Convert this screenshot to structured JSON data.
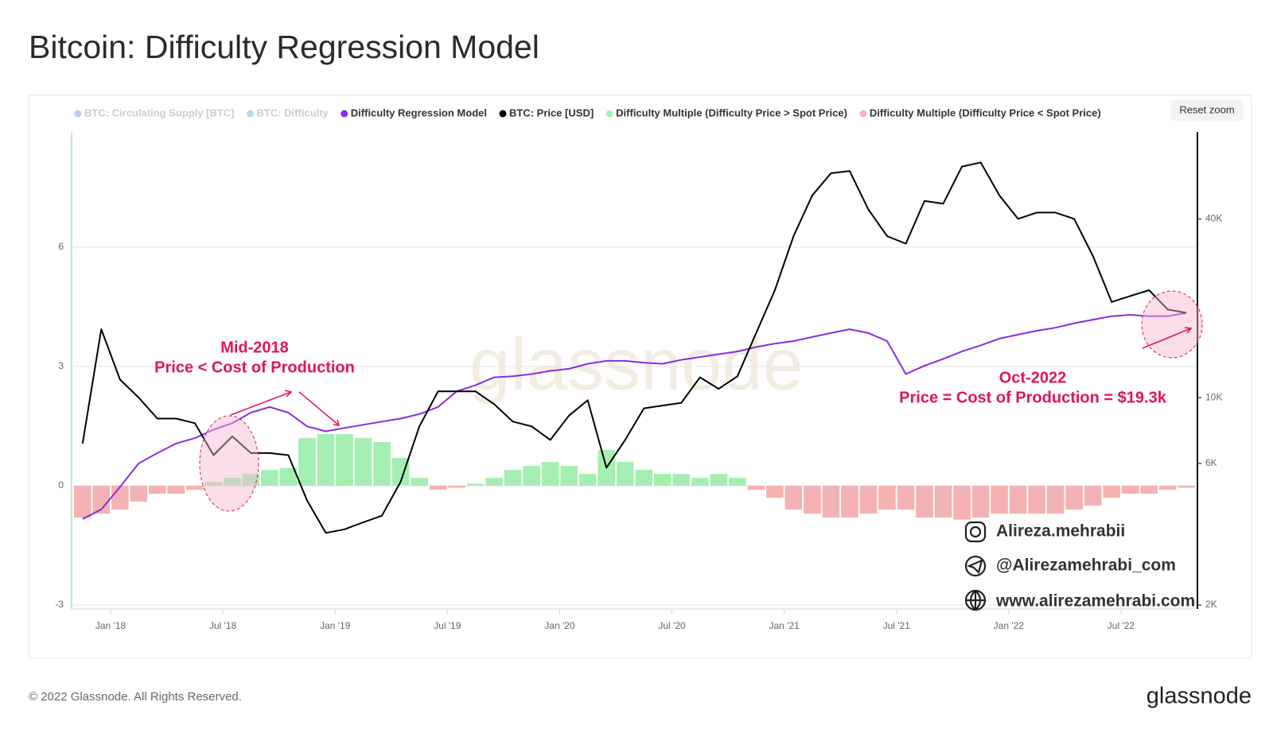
{
  "chart_data": {
    "type": "line",
    "title": "Bitcoin: Difficulty Regression Model",
    "reset_button": "Reset zoom",
    "footer": "© 2022 Glassnode. All Rights Reserved.",
    "logo": "glassnode",
    "watermark": "glassnode",
    "contacts": [
      "Alireza.mehrabii",
      "@Alirezamehrabi_com",
      "www.alirezamehrabi.com"
    ],
    "annotations": [
      {
        "title": "Mid-2018",
        "text": "Price < Cost of Production"
      },
      {
        "title": "Oct-2022",
        "text": "Price = Cost of Production  =  $19.3k"
      }
    ],
    "legend_hidden": [
      {
        "name": "BTC: Circulating Supply [BTC]",
        "color": "#3b6fd1"
      },
      {
        "name": "BTC: Difficulty",
        "color": "#2f8fd0"
      }
    ],
    "x": [
      "2017-11",
      "2017-12",
      "2018-01",
      "2018-02",
      "2018-03",
      "2018-04",
      "2018-05",
      "2018-06",
      "2018-07",
      "2018-08",
      "2018-09",
      "2018-10",
      "2018-11",
      "2018-12",
      "2019-01",
      "2019-02",
      "2019-03",
      "2019-04",
      "2019-05",
      "2019-06",
      "2019-07",
      "2019-08",
      "2019-09",
      "2019-10",
      "2019-11",
      "2019-12",
      "2020-01",
      "2020-02",
      "2020-03",
      "2020-04",
      "2020-05",
      "2020-06",
      "2020-07",
      "2020-08",
      "2020-09",
      "2020-10",
      "2020-11",
      "2020-12",
      "2021-01",
      "2021-02",
      "2021-03",
      "2021-04",
      "2021-05",
      "2021-06",
      "2021-07",
      "2021-08",
      "2021-09",
      "2021-10",
      "2021-11",
      "2021-12",
      "2022-01",
      "2022-02",
      "2022-03",
      "2022-04",
      "2022-05",
      "2022-06",
      "2022-07",
      "2022-08",
      "2022-09",
      "2022-10"
    ],
    "xlim": [
      "2017-11",
      "2022-11"
    ],
    "xticks": [
      {
        "value": "2018-01",
        "label": "Jan '18"
      },
      {
        "value": "2018-07",
        "label": "Jul '18"
      },
      {
        "value": "2019-01",
        "label": "Jan '19"
      },
      {
        "value": "2019-07",
        "label": "Jul '19"
      },
      {
        "value": "2020-01",
        "label": "Jan '20"
      },
      {
        "value": "2020-07",
        "label": "Jul '20"
      },
      {
        "value": "2021-01",
        "label": "Jan '21"
      },
      {
        "value": "2021-07",
        "label": "Jul '21"
      },
      {
        "value": "2022-01",
        "label": "Jan '22"
      },
      {
        "value": "2022-07",
        "label": "Jul '22"
      }
    ],
    "ylim": [
      -3.1,
      8.9
    ],
    "yticks": [
      -3,
      0,
      3,
      6
    ],
    "y2lim": [
      1940,
      78500
    ],
    "y2log": true,
    "y2ticks": [
      {
        "value": 2000,
        "label": "2K"
      },
      {
        "value": 6000,
        "label": "6K"
      },
      {
        "value": 10000,
        "label": "10K"
      },
      {
        "value": 40000,
        "label": "40K"
      }
    ],
    "grid": true,
    "series": [
      {
        "name": "Difficulty Regression Model",
        "type": "line",
        "axis": "y2",
        "color": "#8b2be2",
        "values": [
          3900,
          4200,
          5000,
          6000,
          6500,
          7000,
          7300,
          7800,
          8200,
          8900,
          9300,
          8900,
          8000,
          7700,
          7900,
          8100,
          8300,
          8500,
          8800,
          9300,
          10500,
          11000,
          11700,
          11800,
          12000,
          12300,
          12500,
          13000,
          13300,
          13300,
          13100,
          13000,
          13400,
          13700,
          14000,
          14300,
          14800,
          15200,
          15500,
          16000,
          16500,
          17000,
          16500,
          15500,
          12000,
          12800,
          13500,
          14300,
          15000,
          15800,
          16300,
          16800,
          17200,
          17800,
          18300,
          18800,
          19000,
          18800,
          18800,
          19300
        ]
      },
      {
        "name": "BTC: Price [USD]",
        "type": "line",
        "axis": "y2",
        "color": "#000000",
        "values": [
          7000,
          17000,
          11500,
          10000,
          8500,
          8500,
          8200,
          6400,
          7400,
          6500,
          6500,
          6400,
          4500,
          3500,
          3600,
          3800,
          4000,
          5200,
          8000,
          10500,
          10500,
          10500,
          9500,
          8300,
          8000,
          7200,
          8700,
          9800,
          5800,
          7200,
          9200,
          9400,
          9600,
          11700,
          10700,
          11800,
          16500,
          23000,
          35000,
          48000,
          57000,
          58000,
          43000,
          35000,
          33000,
          46000,
          45000,
          60000,
          62000,
          48000,
          40000,
          42000,
          42000,
          40000,
          30000,
          21000,
          22000,
          23000,
          19800,
          19300
        ]
      },
      {
        "name": "Difficulty Multiple (Difficulty Price > Spot Price)",
        "type": "bar",
        "color": "#a6efb2",
        "values": [
          null,
          null,
          null,
          null,
          null,
          null,
          null,
          0.1,
          0.2,
          0.3,
          0.4,
          0.45,
          1.2,
          1.3,
          1.3,
          1.2,
          1.1,
          0.7,
          0.2,
          null,
          null,
          0.05,
          0.2,
          0.4,
          0.5,
          0.6,
          0.5,
          0.3,
          0.9,
          0.6,
          0.4,
          0.3,
          0.3,
          0.2,
          0.3,
          0.2,
          null,
          null,
          null,
          null,
          null,
          null,
          null,
          null,
          null,
          null,
          null,
          null,
          null,
          null,
          null,
          null,
          null,
          null,
          null,
          null,
          null,
          null,
          null,
          null
        ]
      },
      {
        "name": "Difficulty Multiple (Difficulty Price < Spot Price)",
        "type": "bar",
        "color": "#f5b2b2",
        "values": [
          -0.8,
          -0.7,
          -0.6,
          -0.4,
          -0.2,
          -0.2,
          -0.1,
          null,
          null,
          null,
          null,
          null,
          null,
          null,
          null,
          null,
          null,
          null,
          null,
          -0.1,
          -0.05,
          null,
          null,
          null,
          null,
          null,
          null,
          null,
          null,
          null,
          null,
          null,
          null,
          null,
          null,
          null,
          -0.1,
          -0.3,
          -0.6,
          -0.7,
          -0.8,
          -0.8,
          -0.7,
          -0.6,
          -0.6,
          -0.8,
          -0.8,
          -0.85,
          -0.8,
          -0.7,
          -0.7,
          -0.7,
          -0.7,
          -0.6,
          -0.5,
          -0.3,
          -0.2,
          -0.2,
          -0.1,
          -0.05
        ]
      }
    ]
  }
}
